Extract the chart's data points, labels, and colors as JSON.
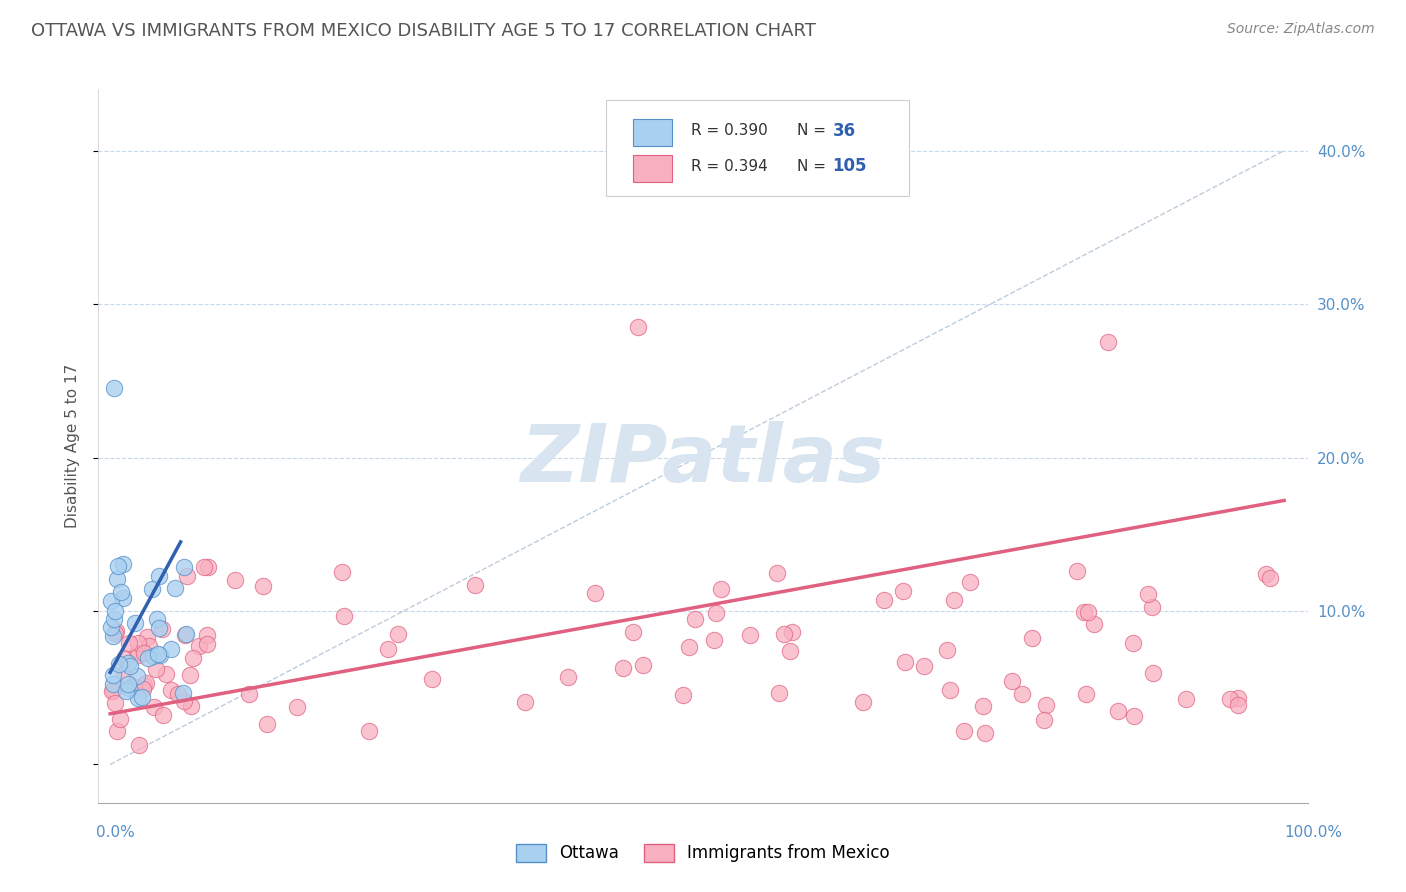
{
  "title": "OTTAWA VS IMMIGRANTS FROM MEXICO DISABILITY AGE 5 TO 17 CORRELATION CHART",
  "source": "Source: ZipAtlas.com",
  "ylabel": "Disability Age 5 to 17",
  "ytick_values": [
    0.0,
    0.1,
    0.2,
    0.3,
    0.4
  ],
  "ytick_labels_right": [
    "",
    "10.0%",
    "20.0%",
    "30.0%",
    "40.0%"
  ],
  "xlim": [
    -0.01,
    1.02
  ],
  "ylim": [
    -0.025,
    0.44
  ],
  "background_color": "#ffffff",
  "grid_color": "#c8d8e8",
  "diag_line_color": "#b0c4d8",
  "ottawa_face": "#aad0f0",
  "ottawa_edge": "#5590c8",
  "mexico_face": "#f8afc0",
  "mexico_edge": "#e06080",
  "trend_blue": "#3060b0",
  "trend_pink": "#e06080",
  "tick_color": "#5590c8",
  "title_color": "#555555",
  "source_color": "#888888",
  "ylabel_color": "#555555",
  "watermark_color": "#d8e4ef",
  "legend_edge_color": "#cccccc",
  "legend_text_color": "#333333",
  "legend_num_color": "#3060b0",
  "n_ottawa": 36,
  "n_mexico": 105
}
